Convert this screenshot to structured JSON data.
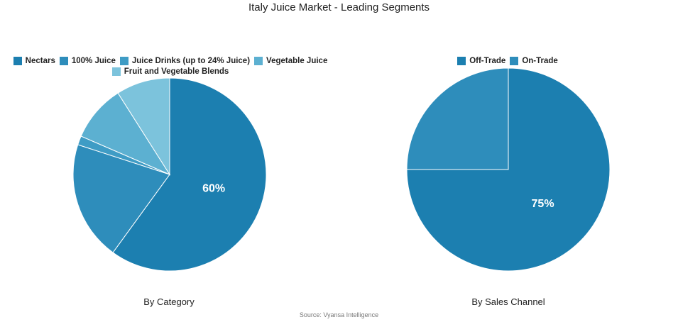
{
  "title": "Italy Juice Market - Leading Segments",
  "source": "Source: Vyansa Intelligence",
  "chart_data": [
    {
      "type": "pie",
      "subtitle": "By Category",
      "legend_position": "top",
      "categories": [
        "Nectars",
        "100% Juice",
        "Juice Drinks (up to 24% Juice)",
        "Vegetable Juice",
        "Fruit and Vegetable Blends"
      ],
      "values": [
        60,
        20,
        1.5,
        9.5,
        9
      ],
      "colors": [
        "#1c7fb0",
        "#2e8dbb",
        "#3f9cc5",
        "#5cb0d1",
        "#7cc3dc"
      ],
      "data_labels": [
        "60%",
        "",
        "",
        "",
        ""
      ]
    },
    {
      "type": "pie",
      "subtitle": "By Sales Channel",
      "legend_position": "top",
      "categories": [
        "Off-Trade",
        "On-Trade"
      ],
      "values": [
        75,
        25
      ],
      "colors": [
        "#1c7fb0",
        "#2e8dbb"
      ],
      "data_labels": [
        "75%",
        ""
      ]
    }
  ]
}
